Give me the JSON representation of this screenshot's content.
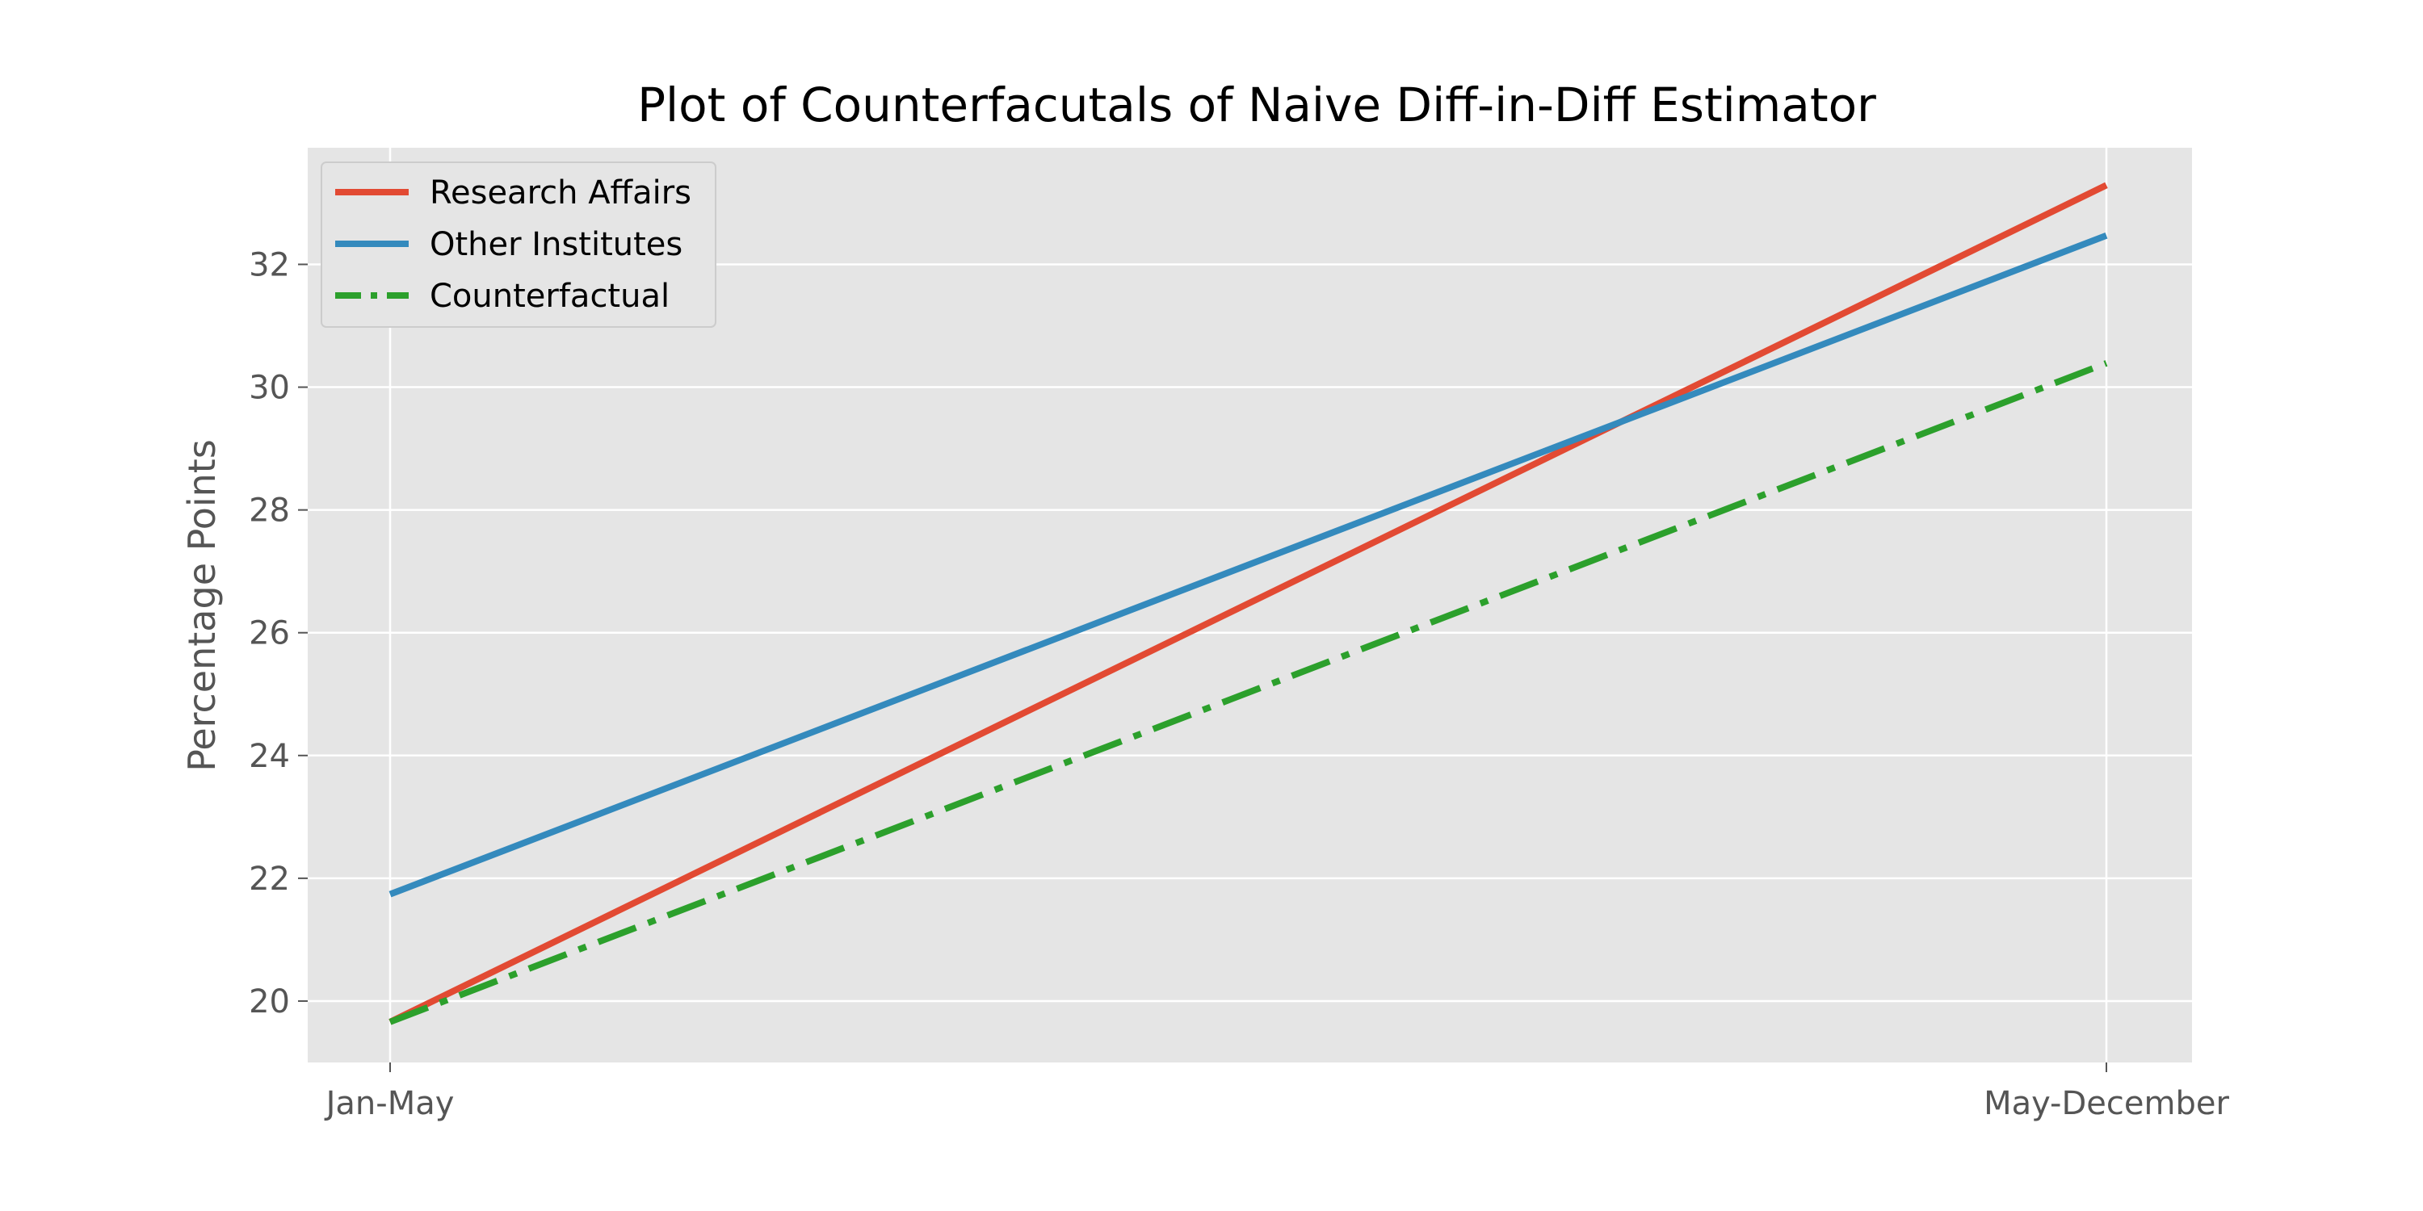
{
  "chart_data": {
    "type": "line",
    "title": "Plot of Counterfacutals of Naive Diff-in-Diff Estimator",
    "xlabel": "",
    "ylabel": "Percentage Points",
    "categories": [
      "Jan-May",
      "May-December"
    ],
    "yticks": [
      20,
      22,
      24,
      26,
      28,
      30,
      32
    ],
    "ylim": [
      19.0,
      33.9
    ],
    "grid": true,
    "legend_position": "top-left",
    "series": [
      {
        "name": "Research Affairs",
        "values": [
          19.66,
          33.29
        ],
        "color": "#E24A33",
        "style": "solid"
      },
      {
        "name": "Other Institutes",
        "values": [
          21.74,
          32.47
        ],
        "color": "#348ABD",
        "style": "solid"
      },
      {
        "name": "Counterfactual",
        "values": [
          19.66,
          30.39
        ],
        "color": "#2ca02c",
        "style": "dashdot"
      }
    ]
  }
}
